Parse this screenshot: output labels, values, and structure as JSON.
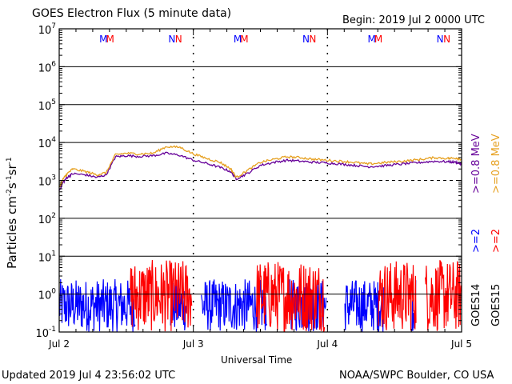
{
  "header": {
    "title": "GOES Electron Flux (5 minute data)",
    "begin": "Begin: 2019 Jul 2 0000 UTC"
  },
  "footer": {
    "updated": "Updated 2019 Jul  4 23:56:02 UTC",
    "credit": "NOAA/SWPC Boulder, CO USA"
  },
  "colors": {
    "goes14_08": "#660099",
    "goes15_08": "#e6a020",
    "goes14_2": "#0000ff",
    "goes15_2": "#ff0000",
    "marker_m_blue": "#0000ff",
    "marker_m_red": "#ff0000"
  },
  "chart_data": {
    "type": "line",
    "title": "GOES Electron Flux (5 minute data)",
    "xlabel": "Universal Time",
    "ylabel_base": "Particles cm",
    "ylabel_sup1": "-2",
    "ylabel_mid1": "s",
    "ylabel_sup2": "-1",
    "ylabel_mid2": "sr",
    "ylabel_sup3": "-1",
    "y_log_range": [
      -1,
      7
    ],
    "x_range_days": [
      0,
      3
    ],
    "x_ticks": [
      {
        "day": 0,
        "label": "Jul 2"
      },
      {
        "day": 1,
        "label": "Jul 3"
      },
      {
        "day": 2,
        "label": "Jul 4"
      },
      {
        "day": 3,
        "label": "Jul 5"
      }
    ],
    "y_ticks": [
      {
        "exp": -1,
        "base": "10",
        "sup": "-1"
      },
      {
        "exp": 0,
        "base": "10",
        "sup": "0"
      },
      {
        "exp": 1,
        "base": "10",
        "sup": "1"
      },
      {
        "exp": 2,
        "base": "10",
        "sup": "2"
      },
      {
        "exp": 3,
        "base": "10",
        "sup": "3"
      },
      {
        "exp": 4,
        "base": "10",
        "sup": "4"
      },
      {
        "exp": 5,
        "base": "10",
        "sup": "5"
      },
      {
        "exp": 6,
        "base": "10",
        "sup": "6"
      },
      {
        "exp": 7,
        "base": "10",
        "sup": "7"
      }
    ],
    "threshold_log": 3,
    "markers": [
      {
        "day": 0.33,
        "text": "M",
        "sat": "goes14"
      },
      {
        "day": 0.38,
        "text": "M",
        "sat": "goes15"
      },
      {
        "day": 0.84,
        "text": "N",
        "sat": "goes14"
      },
      {
        "day": 0.89,
        "text": "N",
        "sat": "goes15"
      },
      {
        "day": 1.33,
        "text": "M",
        "sat": "goes14"
      },
      {
        "day": 1.38,
        "text": "M",
        "sat": "goes15"
      },
      {
        "day": 1.84,
        "text": "N",
        "sat": "goes14"
      },
      {
        "day": 1.89,
        "text": "N",
        "sat": "goes15"
      },
      {
        "day": 2.33,
        "text": "M",
        "sat": "goes14"
      },
      {
        "day": 2.38,
        "text": "M",
        "sat": "goes15"
      },
      {
        "day": 2.84,
        "text": "N",
        "sat": "goes14"
      },
      {
        "day": 2.89,
        "text": "N",
        "sat": "goes15"
      }
    ],
    "series": [
      {
        "name": ">=0.8 MeV",
        "sat": "GOES14",
        "x": [
          0,
          0.03,
          0.06,
          0.1,
          0.2,
          0.28,
          0.35,
          0.42,
          0.5,
          0.6,
          0.7,
          0.8,
          0.9,
          1.0,
          1.1,
          1.2,
          1.28,
          1.32,
          1.4,
          1.5,
          1.6,
          1.7,
          1.8,
          1.9,
          2.0,
          2.1,
          2.2,
          2.3,
          2.4,
          2.5,
          2.6,
          2.7,
          2.8,
          2.9,
          2.96,
          3.0
        ],
        "y": [
          550,
          900,
          1200,
          1500,
          1400,
          1200,
          1400,
          4200,
          4500,
          4300,
          4500,
          5200,
          4600,
          3400,
          2800,
          2200,
          1700,
          1100,
          1500,
          2500,
          3000,
          3400,
          3200,
          3000,
          2900,
          2700,
          2500,
          2300,
          2400,
          2600,
          2800,
          3000,
          3200,
          3100,
          3000,
          2700
        ]
      },
      {
        "name": ">=0.8 MeV",
        "sat": "GOES15",
        "x": [
          0,
          0.03,
          0.06,
          0.1,
          0.2,
          0.28,
          0.35,
          0.42,
          0.5,
          0.6,
          0.7,
          0.8,
          0.9,
          1.0,
          1.1,
          1.2,
          1.28,
          1.32,
          1.4,
          1.5,
          1.6,
          1.7,
          1.8,
          1.9,
          2.0,
          2.1,
          2.2,
          2.3,
          2.4,
          2.5,
          2.6,
          2.7,
          2.8,
          2.9,
          2.96,
          3.0
        ],
        "y": [
          650,
          1100,
          1500,
          2000,
          1700,
          1400,
          1600,
          4800,
          5200,
          5000,
          5200,
          7800,
          7500,
          5000,
          3800,
          3000,
          2000,
          1200,
          1800,
          3000,
          3600,
          4200,
          4000,
          3600,
          3400,
          3200,
          3000,
          2700,
          2900,
          3100,
          3300,
          3600,
          4000,
          3800,
          3900,
          3600
        ]
      },
      {
        "name": ">=2 MeV",
        "sat": "GOES14",
        "segments": [
          [
            0.0,
            0.57
          ],
          [
            0.83,
            0.95
          ],
          [
            1.06,
            1.55
          ],
          [
            1.72,
            1.99
          ],
          [
            2.13,
            2.42
          ],
          [
            2.63,
            2.66
          ]
        ],
        "range": [
          0.1,
          2.5
        ]
      },
      {
        "name": ">=2 MeV",
        "sat": "GOES15",
        "segments": [
          [
            0.53,
            0.99
          ],
          [
            1.47,
            1.98
          ],
          [
            2.38,
            2.66
          ],
          [
            2.73,
            3.0
          ]
        ],
        "range": [
          0.1,
          8
        ]
      }
    ],
    "legend": {
      "sat14": "GOES14",
      "sat15": "GOES15",
      "s1": ">=2",
      "s2": ">=2",
      "s3": ">=0.8  MeV",
      "s4": ">=0.8  MeV"
    }
  }
}
